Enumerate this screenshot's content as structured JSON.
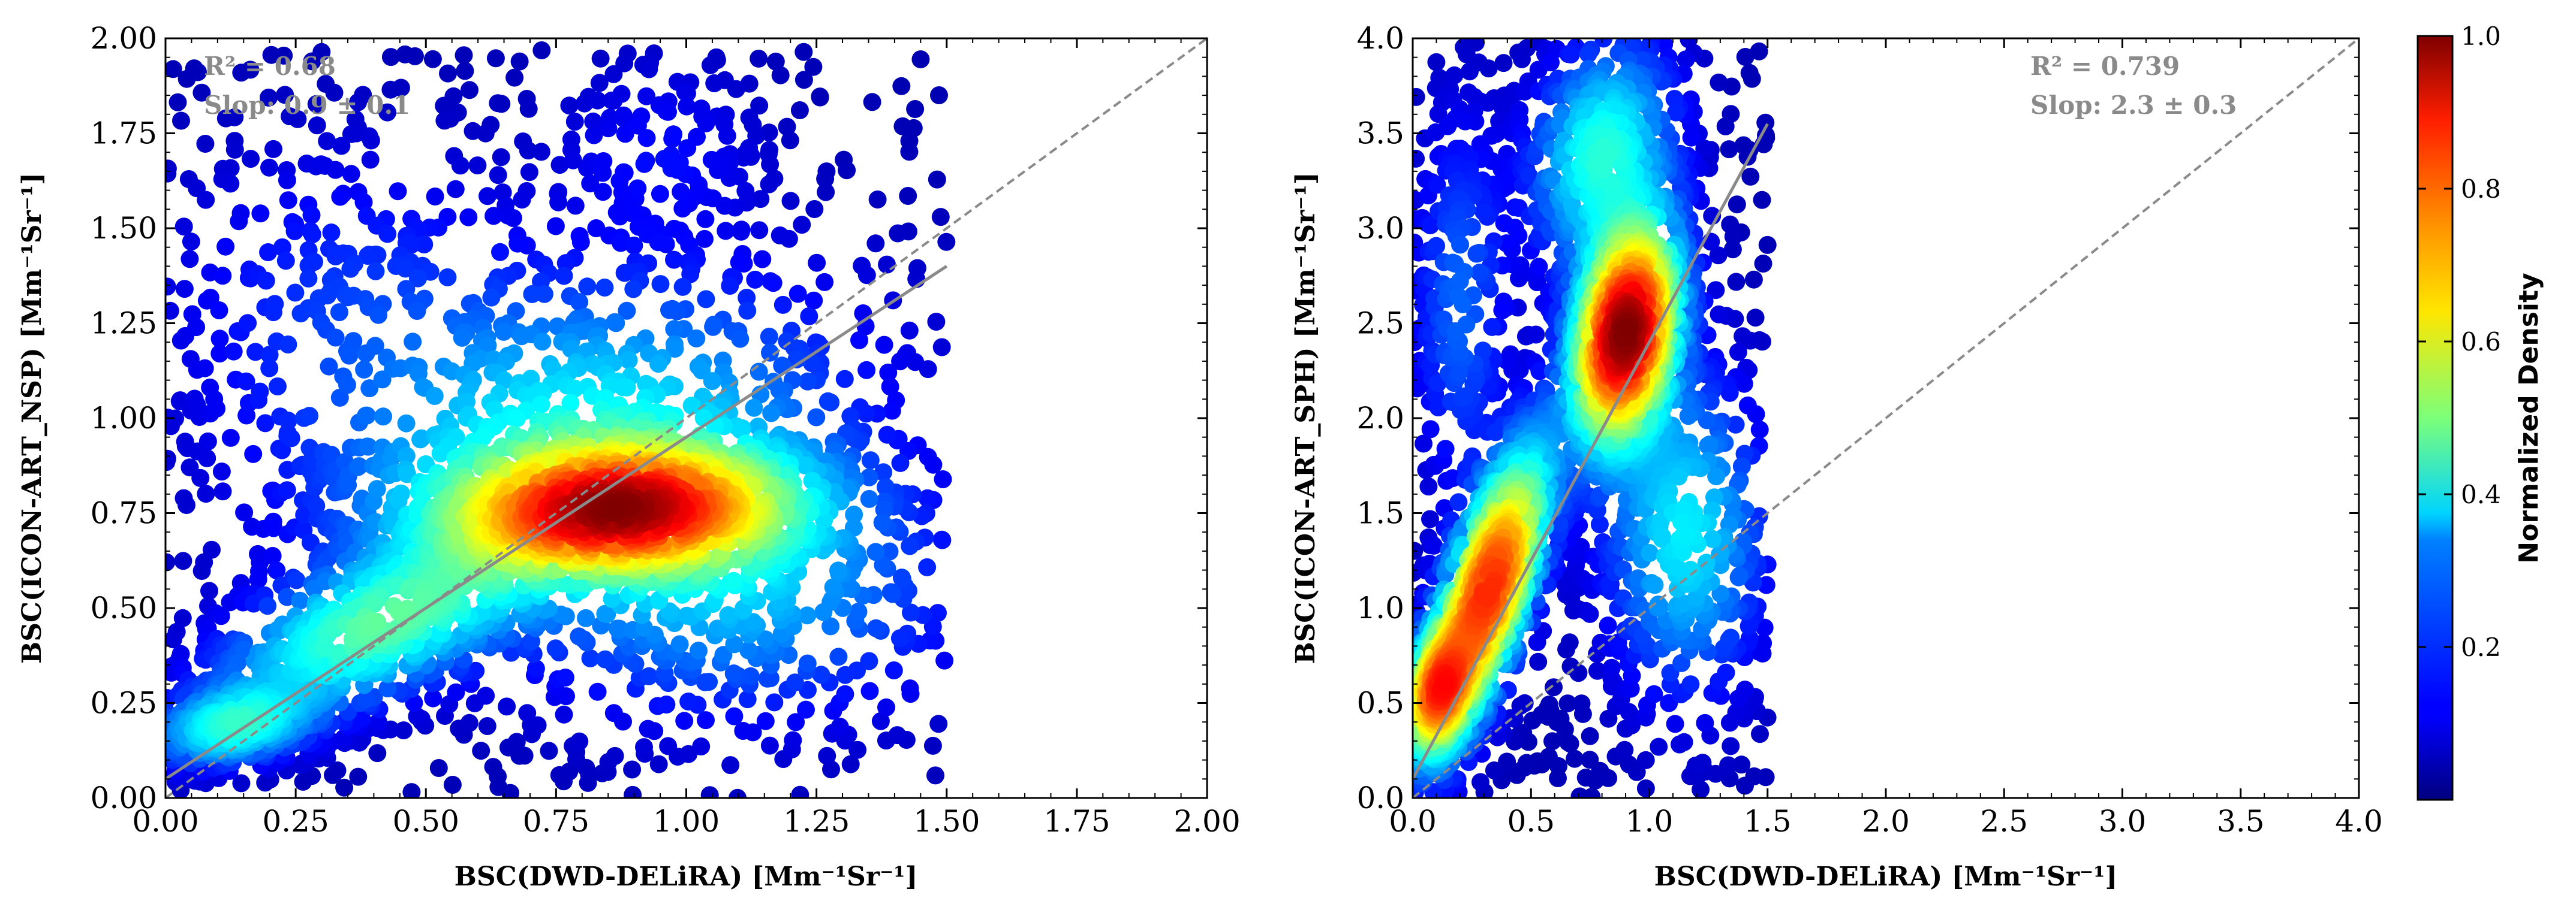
{
  "chart_data": [
    {
      "type": "scatter",
      "xlabel": "BSC(DWD-DELiRA) [Mm⁻¹Sr⁻¹]",
      "ylabel": "BSC(ICON-ART_NSP) [Mm⁻¹Sr⁻¹]",
      "xlim": [
        0,
        2.0
      ],
      "ylim": [
        0,
        2.0
      ],
      "xticks": [
        "0.00",
        "0.25",
        "0.50",
        "0.75",
        "1.00",
        "1.25",
        "1.50",
        "1.75",
        "2.00"
      ],
      "yticks": [
        "0.00",
        "0.25",
        "0.50",
        "0.75",
        "1.00",
        "1.25",
        "1.50",
        "1.75",
        "2.00"
      ],
      "xtick_values": [
        0,
        0.25,
        0.5,
        0.75,
        1.0,
        1.25,
        1.5,
        1.75,
        2.0
      ],
      "ytick_values": [
        0,
        0.25,
        0.5,
        0.75,
        1.0,
        1.25,
        1.5,
        1.75,
        2.0
      ],
      "annotation_r2": "R² = 0.68",
      "annotation_slope": "Slop: 0.9 ± 0.1",
      "fit_line": {
        "x0": 0.0,
        "y0": 0.05,
        "x1": 1.5,
        "y1": 1.4
      },
      "one_to_one": true,
      "density_clusters": [
        {
          "x": 0.87,
          "y": 0.76,
          "sx": 0.2,
          "sy": 0.1,
          "rho": 0.1,
          "weight": 1.0
        },
        {
          "x": 0.4,
          "y": 0.45,
          "sx": 0.18,
          "sy": 0.14,
          "rho": 0.6,
          "weight": 0.45
        },
        {
          "x": 0.13,
          "y": 0.19,
          "sx": 0.09,
          "sy": 0.06,
          "rho": 0.3,
          "weight": 0.35
        },
        {
          "x": 0.8,
          "y": 0.95,
          "sx": 0.3,
          "sy": 0.25,
          "rho": 0.2,
          "weight": 0.35
        },
        {
          "x": 1.1,
          "y": 0.55,
          "sx": 0.25,
          "sy": 0.2,
          "rho": 0.0,
          "weight": 0.25
        },
        {
          "x": 0.35,
          "y": 1.3,
          "sx": 0.22,
          "sy": 0.25,
          "rho": 0.0,
          "weight": 0.1
        },
        {
          "x": 0.95,
          "y": 1.7,
          "sx": 0.12,
          "sy": 0.15,
          "rho": 0.0,
          "weight": 0.06
        }
      ],
      "x_max_data": 1.5,
      "y_max_data": 1.97
    },
    {
      "type": "scatter",
      "xlabel": "BSC(DWD-DELiRA) [Mm⁻¹Sr⁻¹]",
      "ylabel": "BSC(ICON-ART_SPH) [Mm⁻¹Sr⁻¹]",
      "xlim": [
        0,
        4.0
      ],
      "ylim": [
        0,
        4.0
      ],
      "xticks": [
        "0.0",
        "0.5",
        "1.0",
        "1.5",
        "2.0",
        "2.5",
        "3.0",
        "3.5",
        "4.0"
      ],
      "yticks": [
        "0.0",
        "0.5",
        "1.0",
        "1.5",
        "2.0",
        "2.5",
        "3.0",
        "3.5",
        "4.0"
      ],
      "xtick_values": [
        0,
        0.5,
        1.0,
        1.5,
        2.0,
        2.5,
        3.0,
        3.5,
        4.0
      ],
      "ytick_values": [
        0,
        0.5,
        1.0,
        1.5,
        2.0,
        2.5,
        3.0,
        3.5,
        4.0
      ],
      "annotation_r2": "R² = 0.739",
      "annotation_slope": "Slop: 2.3 ± 0.3",
      "fit_line": {
        "x0": 0.0,
        "y0": 0.1,
        "x1": 1.5,
        "y1": 3.55
      },
      "one_to_one": true,
      "density_clusters": [
        {
          "x": 0.9,
          "y": 2.45,
          "sx": 0.13,
          "sy": 0.35,
          "rho": 0.3,
          "weight": 1.0
        },
        {
          "x": 0.32,
          "y": 1.1,
          "sx": 0.15,
          "sy": 0.45,
          "rho": 0.7,
          "weight": 0.8
        },
        {
          "x": 0.1,
          "y": 0.55,
          "sx": 0.08,
          "sy": 0.2,
          "rho": 0.3,
          "weight": 0.55
        },
        {
          "x": 0.8,
          "y": 3.4,
          "sx": 0.18,
          "sy": 0.35,
          "rho": 0.2,
          "weight": 0.3
        },
        {
          "x": 1.15,
          "y": 1.4,
          "sx": 0.2,
          "sy": 0.5,
          "rho": 0.0,
          "weight": 0.25
        },
        {
          "x": 0.2,
          "y": 2.6,
          "sx": 0.12,
          "sy": 0.6,
          "rho": 0.0,
          "weight": 0.12
        }
      ],
      "x_max_data": 1.5,
      "y_max_data": 4.0
    }
  ],
  "colorbar": {
    "label": "Normalized Density",
    "ticks": [
      "0.2",
      "0.4",
      "0.6",
      "0.8",
      "1.0"
    ],
    "tick_values": [
      0.2,
      0.4,
      0.6,
      0.8,
      1.0
    ],
    "range": [
      0.0,
      1.0
    ],
    "colormap": "jet"
  },
  "colors": {
    "fit_line": "#8a8a8a",
    "one_to_one": "#8a8a8a",
    "annotation": "#8a8a8a"
  }
}
